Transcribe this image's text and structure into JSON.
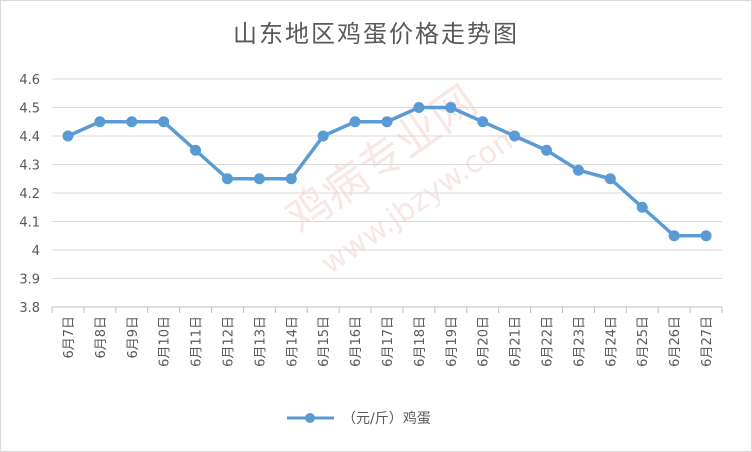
{
  "chart_data": {
    "type": "line",
    "title": "山东地区鸡蛋价格走势图",
    "categories": [
      "6月7日",
      "6月8日",
      "6月9日",
      "6月10日",
      "6月11日",
      "6月12日",
      "6月13日",
      "6月14日",
      "6月15日",
      "6月16日",
      "6月17日",
      "6月18日",
      "6月19日",
      "6月20日",
      "6月21日",
      "6月22日",
      "6月23日",
      "6月24日",
      "6月25日",
      "6月26日",
      "6月27日"
    ],
    "series": [
      {
        "name": "（元/斤）鸡蛋",
        "values": [
          4.4,
          4.45,
          4.45,
          4.45,
          4.35,
          4.25,
          4.25,
          4.25,
          4.4,
          4.45,
          4.45,
          4.5,
          4.5,
          4.45,
          4.4,
          4.35,
          4.28,
          4.25,
          4.15,
          4.05,
          4.05
        ],
        "color": "#5b9bd5"
      }
    ],
    "ylim": [
      3.8,
      4.6
    ],
    "yticks": [
      "3.8",
      "3.9",
      "4",
      "4.1",
      "4.2",
      "4.3",
      "4.4",
      "4.5",
      "4.6"
    ],
    "grid": true,
    "legend_position": "bottom"
  },
  "watermark": {
    "main": "鸡病专业网",
    "url": "www.jbzyw.com"
  }
}
